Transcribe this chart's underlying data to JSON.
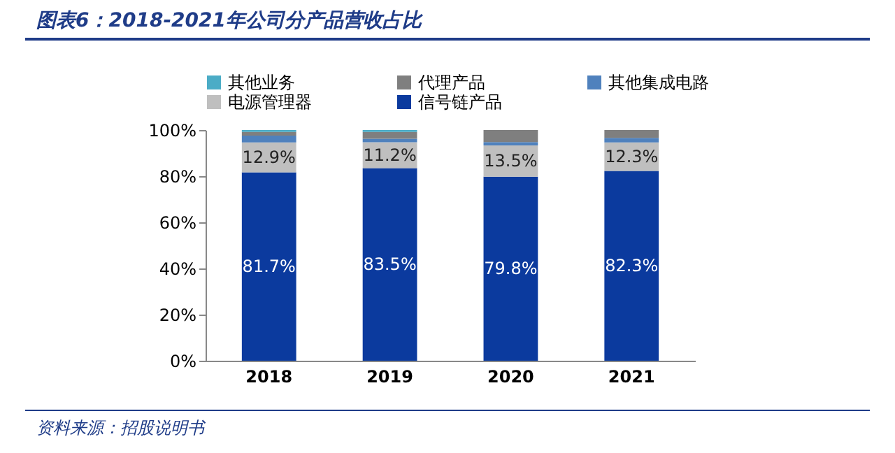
{
  "chart_data": {
    "type": "bar",
    "title": "图表6：2018-2021年公司分产品营收占比",
    "categories": [
      "2018",
      "2019",
      "2020",
      "2021"
    ],
    "stacked": true,
    "series": [
      {
        "name": "信号链产品",
        "color": "#0b3a9e",
        "values": [
          81.7,
          83.5,
          79.8,
          82.3
        ],
        "value_labels": [
          "81.7%",
          "83.5%",
          "79.8%",
          "82.3%"
        ]
      },
      {
        "name": "电源管理器",
        "color": "#bfbfbf",
        "values": [
          12.9,
          11.2,
          13.5,
          12.3
        ],
        "value_labels": [
          "12.9%",
          "11.2%",
          "13.5%",
          "12.3%"
        ]
      },
      {
        "name": "其他集成电路",
        "color": "#4f81bd",
        "values": [
          3.0,
          1.5,
          1.5,
          2.0
        ]
      },
      {
        "name": "代理产品",
        "color": "#7f7f7f",
        "values": [
          1.6,
          3.0,
          5.2,
          3.4
        ]
      },
      {
        "name": "其他业务",
        "color": "#4bacc6",
        "values": [
          0.8,
          0.8,
          0,
          0
        ]
      }
    ],
    "ylim": [
      0,
      100
    ],
    "yticks": [
      {
        "value": 0,
        "label": "0%"
      },
      {
        "value": 20,
        "label": "20%"
      },
      {
        "value": 40,
        "label": "40%"
      },
      {
        "value": 60,
        "label": "60%"
      },
      {
        "value": 80,
        "label": "80%"
      },
      {
        "value": 100,
        "label": "100%"
      }
    ],
    "grid": false,
    "legend": "top",
    "annotations": [
      "资料来源：招股说明书"
    ]
  }
}
